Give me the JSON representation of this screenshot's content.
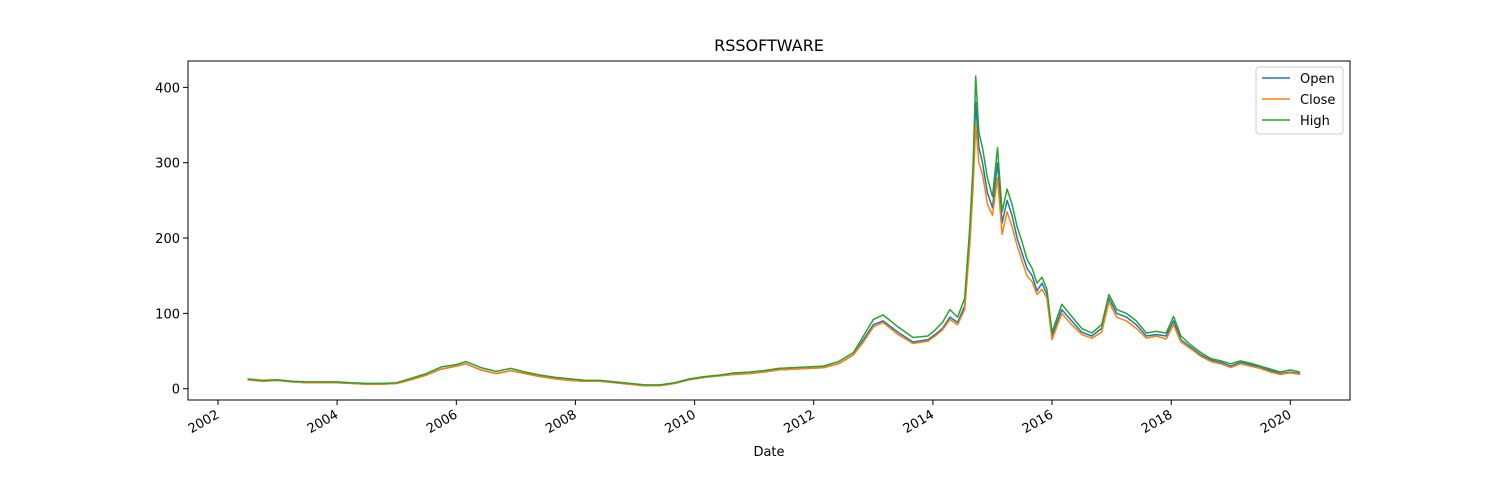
{
  "chart_data": {
    "type": "line",
    "title": "RSSOFTWARE",
    "xlabel": "Date",
    "ylabel": "",
    "x_axis_type": "date",
    "xlim": [
      "2001-07-01",
      "2021-01-01"
    ],
    "ylim": [
      -15,
      435
    ],
    "x_ticks": [
      "2002",
      "2004",
      "2006",
      "2008",
      "2010",
      "2012",
      "2014",
      "2016",
      "2018",
      "2020"
    ],
    "y_ticks": [
      0,
      100,
      200,
      300,
      400
    ],
    "grid": false,
    "legend_position": "top-right",
    "x": [
      "2002-07-01",
      "2002-10-01",
      "2003-01-01",
      "2003-04-01",
      "2003-07-01",
      "2003-10-01",
      "2004-01-01",
      "2004-04-01",
      "2004-07-01",
      "2004-10-01",
      "2005-01-01",
      "2005-04-01",
      "2005-07-01",
      "2005-10-01",
      "2006-01-01",
      "2006-03-01",
      "2006-06-01",
      "2006-09-01",
      "2006-12-01",
      "2007-03-01",
      "2007-06-01",
      "2007-09-01",
      "2007-12-01",
      "2008-03-01",
      "2008-06-01",
      "2008-09-01",
      "2008-12-01",
      "2009-03-01",
      "2009-06-01",
      "2009-09-01",
      "2009-12-01",
      "2010-03-01",
      "2010-06-01",
      "2010-09-01",
      "2010-12-01",
      "2011-03-01",
      "2011-06-01",
      "2011-09-01",
      "2011-12-01",
      "2012-03-01",
      "2012-06-01",
      "2012-09-01",
      "2012-11-01",
      "2013-01-01",
      "2013-03-01",
      "2013-06-01",
      "2013-09-01",
      "2013-12-01",
      "2014-01-15",
      "2014-03-01",
      "2014-04-15",
      "2014-06-01",
      "2014-07-15",
      "2014-08-15",
      "2014-09-05",
      "2014-09-20",
      "2014-10-10",
      "2014-11-01",
      "2014-12-01",
      "2015-01-01",
      "2015-02-01",
      "2015-03-01",
      "2015-04-01",
      "2015-05-01",
      "2015-06-01",
      "2015-07-01",
      "2015-08-01",
      "2015-09-01",
      "2015-10-01",
      "2015-11-01",
      "2015-12-01",
      "2016-01-01",
      "2016-03-01",
      "2016-05-01",
      "2016-07-01",
      "2016-09-01",
      "2016-11-01",
      "2016-12-15",
      "2017-02-01",
      "2017-04-01",
      "2017-06-01",
      "2017-08-01",
      "2017-10-01",
      "2017-12-01",
      "2018-01-15",
      "2018-03-01",
      "2018-05-01",
      "2018-07-01",
      "2018-09-01",
      "2018-11-01",
      "2019-01-01",
      "2019-03-01",
      "2019-05-01",
      "2019-07-01",
      "2019-09-01",
      "2019-11-01",
      "2020-01-01",
      "2020-03-01"
    ],
    "series": [
      {
        "name": "Open",
        "color": "#1f77b4",
        "values": [
          12,
          10,
          11,
          9,
          8,
          8,
          8,
          7,
          6,
          6,
          7,
          12,
          18,
          26,
          30,
          33,
          25,
          20,
          24,
          20,
          16,
          13,
          11,
          10,
          10,
          8,
          6,
          4,
          4,
          7,
          12,
          15,
          17,
          19,
          20,
          22,
          25,
          26,
          27,
          28,
          33,
          45,
          65,
          85,
          90,
          75,
          62,
          65,
          72,
          80,
          95,
          88,
          110,
          200,
          285,
          380,
          320,
          300,
          260,
          240,
          300,
          220,
          250,
          230,
          200,
          180,
          160,
          150,
          130,
          140,
          125,
          70,
          105,
          90,
          75,
          70,
          80,
          120,
          100,
          95,
          85,
          70,
          72,
          70,
          90,
          65,
          55,
          45,
          38,
          35,
          30,
          35,
          32,
          28,
          24,
          20,
          22,
          20
        ]
      },
      {
        "name": "Close",
        "color": "#ff7f0e",
        "values": [
          12,
          10,
          11,
          9,
          8,
          8,
          8,
          7,
          6,
          6,
          7,
          12,
          18,
          26,
          30,
          33,
          25,
          20,
          24,
          20,
          16,
          13,
          11,
          10,
          10,
          8,
          6,
          4,
          4,
          7,
          12,
          15,
          17,
          19,
          20,
          22,
          25,
          26,
          27,
          28,
          33,
          45,
          62,
          82,
          88,
          72,
          60,
          63,
          70,
          78,
          92,
          85,
          105,
          190,
          270,
          350,
          300,
          285,
          245,
          230,
          280,
          205,
          235,
          215,
          190,
          170,
          150,
          142,
          125,
          132,
          120,
          65,
          100,
          85,
          72,
          67,
          75,
          115,
          95,
          90,
          80,
          67,
          70,
          66,
          85,
          62,
          53,
          43,
          36,
          33,
          28,
          33,
          30,
          27,
          22,
          19,
          21,
          19
        ]
      },
      {
        "name": "High",
        "color": "#2ca02c",
        "values": [
          13,
          11,
          12,
          10,
          9,
          9,
          9,
          8,
          7,
          7,
          8,
          14,
          20,
          29,
          32,
          36,
          28,
          23,
          27,
          22,
          18,
          15,
          13,
          11,
          11,
          9,
          7,
          5,
          5,
          8,
          13,
          16,
          18,
          21,
          22,
          24,
          27,
          28,
          29,
          30,
          36,
          48,
          70,
          92,
          98,
          82,
          68,
          70,
          78,
          88,
          105,
          95,
          120,
          215,
          300,
          415,
          340,
          320,
          280,
          255,
          320,
          235,
          265,
          245,
          215,
          195,
          172,
          160,
          140,
          148,
          132,
          75,
          112,
          96,
          80,
          74,
          85,
          125,
          105,
          100,
          90,
          74,
          76,
          74,
          96,
          70,
          58,
          48,
          40,
          37,
          33,
          37,
          34,
          30,
          26,
          22,
          25,
          22
        ]
      }
    ]
  }
}
